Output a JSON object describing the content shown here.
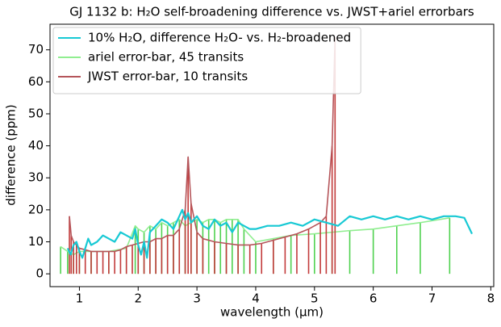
{
  "chart_data": {
    "type": "line",
    "title": "GJ 1132 b: H₂O self-broadening difference vs. JWST+ariel errorbars",
    "x_label": "wavelength (μm)",
    "y_label": "difference (ppm)",
    "xlim": [
      0.5,
      8.05
    ],
    "ylim": [
      -4,
      78
    ],
    "xticks": [
      1,
      2,
      3,
      4,
      5,
      6,
      7,
      8
    ],
    "yticks": [
      0,
      10,
      20,
      30,
      40,
      50,
      60,
      70
    ],
    "legend": "upper left",
    "series": [
      {
        "name": "10% H₂O, difference H₂O- vs. H₂-broadened",
        "color": "#17c9d4",
        "x": [
          0.8,
          0.85,
          0.9,
          0.95,
          1.0,
          1.05,
          1.1,
          1.15,
          1.2,
          1.3,
          1.4,
          1.5,
          1.6,
          1.7,
          1.8,
          1.9,
          1.95,
          2.0,
          2.05,
          2.1,
          2.15,
          2.2,
          2.3,
          2.4,
          2.5,
          2.6,
          2.7,
          2.75,
          2.8,
          2.85,
          2.9,
          3.0,
          3.1,
          3.2,
          3.3,
          3.4,
          3.5,
          3.6,
          3.7,
          3.8,
          3.9,
          4.0,
          4.2,
          4.4,
          4.6,
          4.8,
          5.0,
          5.2,
          5.4,
          5.6,
          5.8,
          6.0,
          6.2,
          6.4,
          6.6,
          6.8,
          7.0,
          7.2,
          7.4,
          7.55,
          7.68
        ],
        "values": [
          8,
          6,
          9,
          10,
          7,
          5,
          8,
          11,
          9,
          10,
          12,
          11,
          10,
          13,
          12,
          11,
          14,
          9,
          6,
          10,
          5,
          13,
          15,
          17,
          16,
          14,
          18,
          20,
          17,
          19,
          16,
          18,
          15,
          14,
          17,
          15,
          16,
          13,
          16,
          15,
          14,
          14,
          15,
          15,
          16,
          15,
          17,
          16,
          15,
          18,
          17,
          18,
          17,
          18,
          17,
          18,
          17,
          18,
          18,
          17.5,
          12.5
        ]
      },
      {
        "name": "ariel error-bar, 45 transits",
        "color": "#90ee90",
        "errorbar_color": "#4fd14f",
        "x": [
          0.68,
          0.8,
          0.9,
          1.0,
          1.2,
          1.5,
          1.8,
          1.95,
          2.0,
          2.1,
          2.2,
          2.3,
          2.4,
          2.5,
          2.6,
          2.7,
          2.8,
          2.9,
          3.0,
          3.1,
          3.2,
          3.3,
          3.4,
          3.5,
          3.6,
          3.7,
          3.8,
          4.0,
          4.3,
          4.6,
          5.0,
          5.3,
          5.6,
          6.0,
          6.4,
          6.8,
          7.3
        ],
        "values": [
          8.5,
          7,
          6,
          7,
          7,
          7,
          8,
          15,
          14,
          13,
          15,
          14,
          16,
          15,
          16,
          17,
          15,
          16,
          17,
          16,
          17,
          17,
          16,
          17,
          17,
          17,
          14,
          10,
          11,
          12,
          12.5,
          13,
          13.5,
          14,
          15,
          16,
          17.5
        ]
      },
      {
        "name": "JWST error-bar, 10 transits",
        "color": "#b5555a",
        "errorbar_color": "#c23a3a",
        "x": [
          0.83,
          0.86,
          0.9,
          0.95,
          1.0,
          1.1,
          1.2,
          1.3,
          1.4,
          1.5,
          1.6,
          1.7,
          1.8,
          1.9,
          2.0,
          2.1,
          2.2,
          2.3,
          2.4,
          2.5,
          2.6,
          2.7,
          2.8,
          2.85,
          2.9,
          3.0,
          3.1,
          3.3,
          3.5,
          3.7,
          3.9,
          4.1,
          4.3,
          4.5,
          4.7,
          4.9,
          5.1,
          5.2,
          5.3,
          5.35
        ],
        "values": [
          18,
          12,
          10,
          9,
          8,
          7.5,
          7,
          7,
          7,
          7,
          7,
          7.5,
          8.5,
          9,
          9.5,
          10,
          10,
          11,
          11,
          12,
          12,
          14,
          20,
          36.5,
          22,
          13,
          11,
          10,
          9.5,
          9,
          9,
          9.5,
          10.5,
          11.5,
          12.5,
          14,
          16,
          18,
          40,
          74
        ]
      }
    ]
  }
}
